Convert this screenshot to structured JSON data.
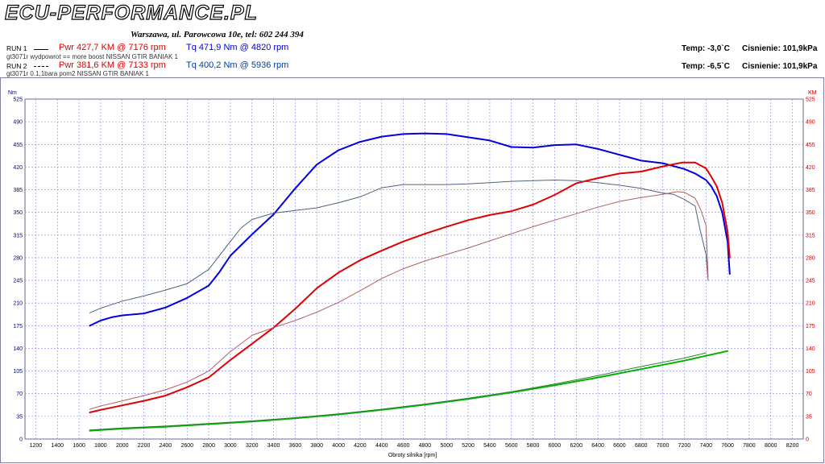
{
  "header": {
    "logo": "ECU-PERFORMANCE.PL",
    "address": "Warszawa, ul. Parowcowa 10e, tel: 602 244 394",
    "run1": {
      "label": "RUN 1",
      "pwr": "Pwr  427,7 KM @ 7176 rpm",
      "tq": "Tq 471,9 Nm @ 4820 rpm",
      "desc": "gt3071r wydpowrot  == more boost NISSAN GTIR BANIAK 1",
      "temp": "Temp: -3,0`C",
      "pressure": "Cisnienie: 101,9kPa"
    },
    "run2": {
      "label": "RUN 2",
      "pwr": "Pwr  381,6 KM @ 7133 rpm",
      "tq": "Tq 400,2 Nm @ 5936 rpm",
      "desc": "gt3071r 0.1,1bara pom2 NISSAN GTIR BANIAK 1",
      "temp": "Temp: -6,5`C",
      "pressure": "Cisnienie: 101,9kPa"
    }
  },
  "colors": {
    "run1_pwr": "#e00000",
    "run1_tq": "#0000e0",
    "run2_pwr": "#b06060",
    "run2_tq": "#506080",
    "loss1": "#00b000",
    "loss2": "#308030",
    "grid": "#8080ff"
  },
  "chart_data": {
    "type": "line",
    "xlabel": "Obroty silnika [rpm]",
    "ylabel_left": "Nm",
    "ylabel_right": "KM",
    "xlim": [
      1100,
      8300
    ],
    "ylim": [
      0,
      525
    ],
    "xticks": [
      1200,
      1400,
      1600,
      1800,
      2000,
      2200,
      2400,
      2600,
      2800,
      3000,
      3200,
      3400,
      3600,
      3800,
      4000,
      4200,
      4400,
      4600,
      4800,
      5000,
      5200,
      5400,
      5600,
      5800,
      6000,
      6200,
      6400,
      6600,
      6800,
      7000,
      7200,
      7400,
      7600,
      7800,
      8000,
      8200
    ],
    "yticks": [
      0,
      35,
      70,
      105,
      140,
      175,
      210,
      245,
      280,
      315,
      350,
      385,
      420,
      455,
      490,
      525
    ],
    "series": [
      {
        "name": "Tq 471,9 Nm @ 4820 rpm",
        "style": "thick",
        "x": [
          1700,
          1800,
          1900,
          2000,
          2200,
          2400,
          2600,
          2800,
          2900,
          3000,
          3200,
          3400,
          3600,
          3800,
          4000,
          4200,
          4400,
          4600,
          4800,
          5000,
          5200,
          5400,
          5600,
          5800,
          6000,
          6200,
          6400,
          6600,
          6800,
          7000,
          7200,
          7300,
          7400,
          7450,
          7500,
          7550,
          7600,
          7620
        ],
        "y": [
          175,
          183,
          188,
          191,
          194,
          203,
          218,
          237,
          258,
          283,
          316,
          347,
          387,
          424,
          446,
          459,
          467,
          471,
          472,
          471,
          466,
          461,
          451,
          450,
          454,
          455,
          448,
          439,
          430,
          426,
          417,
          410,
          400,
          390,
          375,
          350,
          305,
          255
        ]
      },
      {
        "name": "Pwr  427,7 KM @ 7176 rpm",
        "style": "thick",
        "x": [
          1700,
          1800,
          2000,
          2200,
          2400,
          2600,
          2800,
          3000,
          3200,
          3400,
          3600,
          3800,
          4000,
          4200,
          4400,
          4600,
          4800,
          5000,
          5200,
          5400,
          5600,
          5800,
          6000,
          6200,
          6400,
          6600,
          6800,
          7000,
          7176,
          7300,
          7400,
          7450,
          7500,
          7550,
          7600,
          7620
        ],
        "y": [
          41,
          45,
          52,
          59,
          67,
          80,
          95,
          122,
          147,
          172,
          201,
          233,
          257,
          276,
          291,
          305,
          317,
          328,
          338,
          346,
          352,
          362,
          377,
          395,
          403,
          410,
          413,
          421,
          427,
          427,
          418,
          405,
          390,
          365,
          320,
          280
        ]
      },
      {
        "name": "Tq 400,2 Nm @ 5936 rpm",
        "style": "thin",
        "x": [
          1700,
          1800,
          2000,
          2200,
          2400,
          2600,
          2800,
          3000,
          3100,
          3200,
          3400,
          3600,
          3800,
          4000,
          4200,
          4400,
          4600,
          4800,
          5000,
          5200,
          5400,
          5600,
          5800,
          6000,
          6200,
          6400,
          6600,
          6800,
          7000,
          7100,
          7200,
          7300,
          7350,
          7400,
          7420
        ],
        "y": [
          195,
          202,
          213,
          221,
          230,
          240,
          262,
          305,
          326,
          339,
          349,
          353,
          357,
          365,
          374,
          388,
          393,
          393,
          393,
          394,
          396,
          398,
          399,
          400,
          399,
          396,
          392,
          387,
          380,
          378,
          370,
          360,
          320,
          285,
          245
        ]
      },
      {
        "name": "Pwr  381,6 KM @ 7133 rpm",
        "style": "thin",
        "x": [
          1700,
          1800,
          2000,
          2200,
          2400,
          2600,
          2800,
          3000,
          3200,
          3400,
          3600,
          3800,
          4000,
          4200,
          4400,
          4600,
          4800,
          5000,
          5200,
          5400,
          5600,
          5800,
          6000,
          6200,
          6400,
          6600,
          6800,
          7000,
          7133,
          7200,
          7300,
          7350,
          7400,
          7420
        ],
        "y": [
          46,
          51,
          59,
          67,
          76,
          88,
          105,
          135,
          160,
          172,
          183,
          196,
          211,
          229,
          248,
          263,
          275,
          285,
          295,
          306,
          317,
          328,
          338,
          348,
          358,
          367,
          373,
          378,
          382,
          381,
          372,
          355,
          330,
          250
        ]
      },
      {
        "name": "",
        "style": "thick",
        "x": [
          1700,
          2000,
          2400,
          2800,
          3200,
          3600,
          4000,
          4400,
          4800,
          5200,
          5600,
          6000,
          6400,
          6800,
          7200,
          7600
        ],
        "y": [
          13,
          16,
          19,
          23,
          27,
          32,
          38,
          45,
          53,
          62,
          72,
          83,
          95,
          108,
          121,
          136
        ]
      },
      {
        "name": "",
        "style": "thin",
        "x": [
          1700,
          2000,
          2400,
          2800,
          3200,
          3600,
          4000,
          4400,
          4800,
          5200,
          5600,
          6000,
          6400,
          6800,
          7200,
          7400
        ],
        "y": [
          14,
          17,
          20,
          24,
          28,
          33,
          39,
          46,
          54,
          63,
          73,
          85,
          98,
          112,
          125,
          133
        ]
      }
    ]
  }
}
